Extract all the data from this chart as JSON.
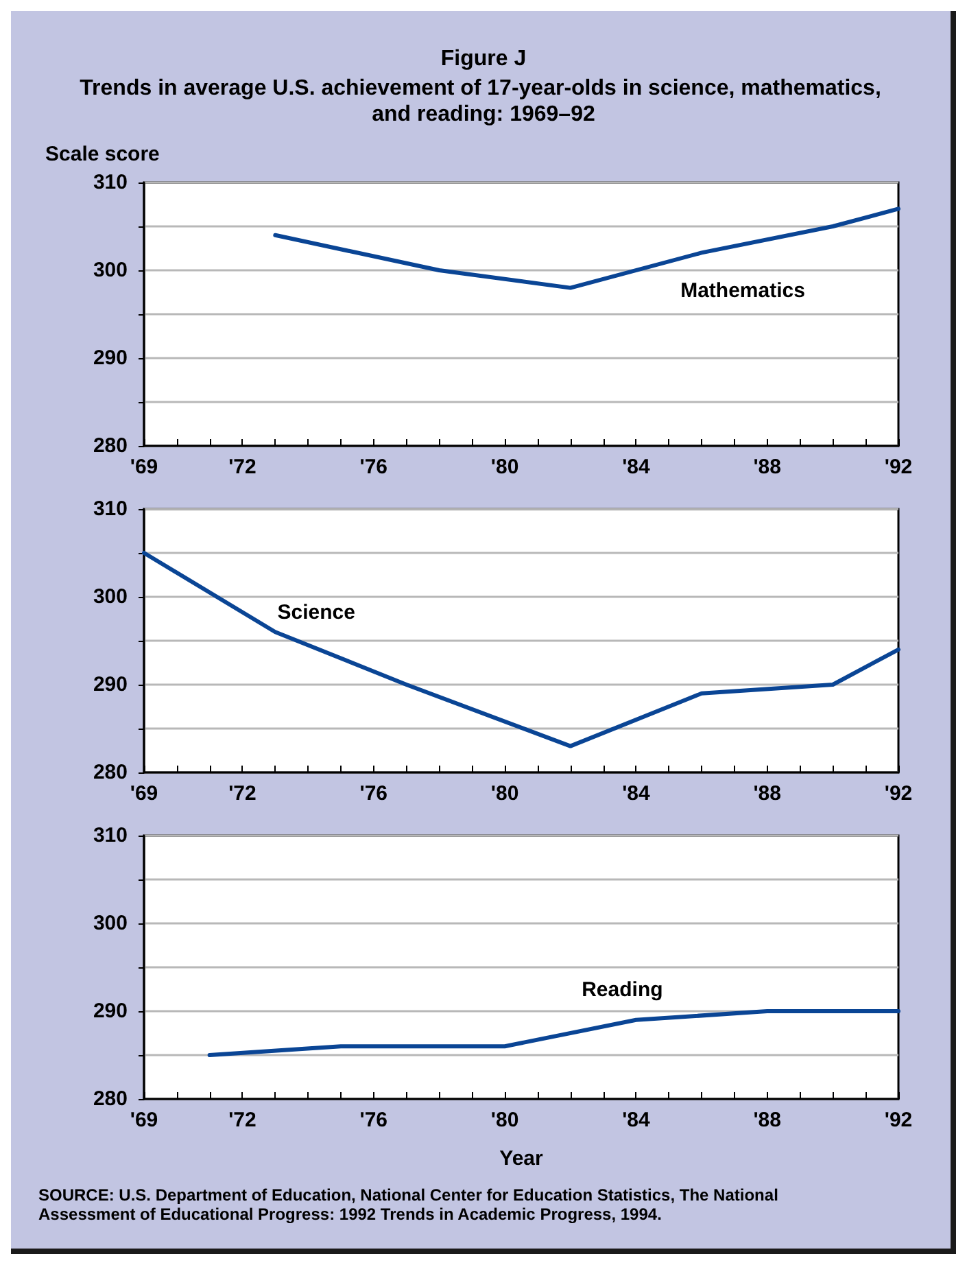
{
  "chart_data": [
    {
      "type": "line",
      "title": "Figure J",
      "subtitle": "Trends in average U.S. achievement of 17-year-olds in science, mathematics, and reading: 1969–92",
      "ylabel": "Scale score",
      "x": [
        1973,
        1978,
        1982,
        1986,
        1990,
        1992
      ],
      "series": [
        {
          "name": "Mathematics",
          "color": "#0a4595",
          "values": [
            304,
            300,
            298,
            302,
            305,
            307
          ]
        }
      ],
      "xlim": [
        1969,
        1992
      ],
      "ylim": [
        280,
        310
      ],
      "xticks": [
        {
          "value": 1969,
          "label": "'69"
        },
        {
          "value": 1970,
          "label": null
        },
        {
          "value": 1971,
          "label": null
        },
        {
          "value": 1972,
          "label": "'72"
        },
        {
          "value": 1973,
          "label": null
        },
        {
          "value": 1974,
          "label": null
        },
        {
          "value": 1975,
          "label": null
        },
        {
          "value": 1976,
          "label": "'76"
        },
        {
          "value": 1977,
          "label": null
        },
        {
          "value": 1978,
          "label": null
        },
        {
          "value": 1979,
          "label": null
        },
        {
          "value": 1980,
          "label": "'80"
        },
        {
          "value": 1981,
          "label": null
        },
        {
          "value": 1982,
          "label": null
        },
        {
          "value": 1983,
          "label": null
        },
        {
          "value": 1984,
          "label": "'84"
        },
        {
          "value": 1985,
          "label": null
        },
        {
          "value": 1986,
          "label": null
        },
        {
          "value": 1987,
          "label": null
        },
        {
          "value": 1988,
          "label": "'88"
        },
        {
          "value": 1989,
          "label": null
        },
        {
          "value": 1990,
          "label": null
        },
        {
          "value": 1991,
          "label": null
        },
        {
          "value": 1992,
          "label": "'92"
        }
      ],
      "yticks": [
        280,
        {
          "value": 285,
          "label": null
        },
        290,
        {
          "value": 295,
          "label": null
        },
        300,
        {
          "value": 305,
          "label": null
        },
        310
      ],
      "grid": "y",
      "legend": false,
      "marker": "none",
      "line_style": "solid"
    },
    {
      "type": "line",
      "x": [
        1969,
        1973,
        1977,
        1982,
        1986,
        1990,
        1992
      ],
      "series": [
        {
          "name": "Science",
          "color": "#0a4595",
          "values": [
            305,
            296,
            290,
            283,
            289,
            290,
            294
          ]
        }
      ],
      "xlim": [
        1969,
        1992
      ],
      "ylim": [
        280,
        310
      ],
      "xticks": [
        {
          "value": 1969,
          "label": "'69"
        },
        {
          "value": 1970,
          "label": null
        },
        {
          "value": 1971,
          "label": null
        },
        {
          "value": 1972,
          "label": "'72"
        },
        {
          "value": 1973,
          "label": null
        },
        {
          "value": 1974,
          "label": null
        },
        {
          "value": 1975,
          "label": null
        },
        {
          "value": 1976,
          "label": "'76"
        },
        {
          "value": 1977,
          "label": null
        },
        {
          "value": 1978,
          "label": null
        },
        {
          "value": 1979,
          "label": null
        },
        {
          "value": 1980,
          "label": "'80"
        },
        {
          "value": 1981,
          "label": null
        },
        {
          "value": 1982,
          "label": null
        },
        {
          "value": 1983,
          "label": null
        },
        {
          "value": 1984,
          "label": "'84"
        },
        {
          "value": 1985,
          "label": null
        },
        {
          "value": 1986,
          "label": null
        },
        {
          "value": 1987,
          "label": null
        },
        {
          "value": 1988,
          "label": "'88"
        },
        {
          "value": 1989,
          "label": null
        },
        {
          "value": 1990,
          "label": null
        },
        {
          "value": 1991,
          "label": null
        },
        {
          "value": 1992,
          "label": "'92"
        }
      ],
      "yticks": [
        280,
        {
          "value": 285,
          "label": null
        },
        290,
        {
          "value": 295,
          "label": null
        },
        300,
        {
          "value": 305,
          "label": null
        },
        310
      ],
      "grid": "y",
      "legend": false,
      "marker": "none",
      "line_style": "solid"
    },
    {
      "type": "line",
      "xlabel": "Year",
      "x": [
        1971,
        1975,
        1980,
        1984,
        1988,
        1990,
        1992
      ],
      "series": [
        {
          "name": "Reading",
          "color": "#0a4595",
          "values": [
            285,
            286,
            286,
            289,
            290,
            290,
            290
          ]
        }
      ],
      "xlim": [
        1969,
        1992
      ],
      "ylim": [
        280,
        310
      ],
      "xticks": [
        {
          "value": 1969,
          "label": "'69"
        },
        {
          "value": 1970,
          "label": null
        },
        {
          "value": 1971,
          "label": null
        },
        {
          "value": 1972,
          "label": "'72"
        },
        {
          "value": 1973,
          "label": null
        },
        {
          "value": 1974,
          "label": null
        },
        {
          "value": 1975,
          "label": null
        },
        {
          "value": 1976,
          "label": "'76"
        },
        {
          "value": 1977,
          "label": null
        },
        {
          "value": 1978,
          "label": null
        },
        {
          "value": 1979,
          "label": null
        },
        {
          "value": 1980,
          "label": "'80"
        },
        {
          "value": 1981,
          "label": null
        },
        {
          "value": 1982,
          "label": null
        },
        {
          "value": 1983,
          "label": null
        },
        {
          "value": 1984,
          "label": "'84"
        },
        {
          "value": 1985,
          "label": null
        },
        {
          "value": 1986,
          "label": null
        },
        {
          "value": 1987,
          "label": null
        },
        {
          "value": 1988,
          "label": "'88"
        },
        {
          "value": 1989,
          "label": null
        },
        {
          "value": 1990,
          "label": null
        },
        {
          "value": 1991,
          "label": null
        },
        {
          "value": 1992,
          "label": "'92"
        }
      ],
      "yticks": [
        280,
        {
          "value": 285,
          "label": null
        },
        290,
        {
          "value": 295,
          "label": null
        },
        300,
        {
          "value": 305,
          "label": null
        },
        310
      ],
      "grid": "y",
      "legend": false,
      "marker": "none",
      "line_style": "solid",
      "annotations": [
        "SOURCE: U.S. Department of Education, National Center for Education Statistics, The National Assessment of Educational Progress: 1992 Trends in Academic Progress, 1994."
      ]
    }
  ]
}
